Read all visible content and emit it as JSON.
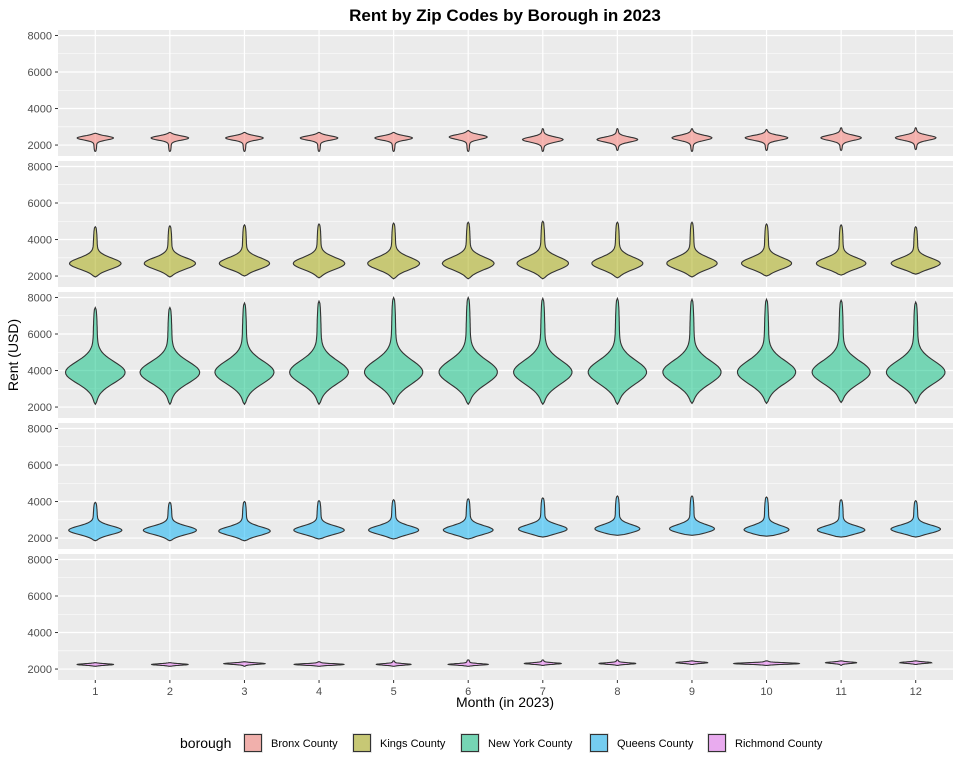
{
  "chart_data": {
    "type": "violin",
    "title": "Rent by Zip Codes by Borough in 2023",
    "xlabel": "Month (in 2023)",
    "ylabel": "Rent (USD)",
    "categories": [
      "1",
      "2",
      "3",
      "4",
      "5",
      "6",
      "7",
      "8",
      "9",
      "10",
      "11",
      "12"
    ],
    "y_ticks": [
      "2000",
      "4000",
      "6000",
      "8000"
    ],
    "ylim": [
      1400,
      8300
    ],
    "grid": true,
    "facets": "rows by borough, shared y axis",
    "legend": {
      "title": "borough",
      "position": "bottom",
      "entries": [
        "Bronx County",
        "Kings County",
        "New York County",
        "Queens County",
        "Richmond County"
      ]
    },
    "series": [
      {
        "name": "Bronx County",
        "color": "#F8766D",
        "months": [
          {
            "min": 1650,
            "max": 2650,
            "mode": 2400,
            "widest": 0.58
          },
          {
            "min": 1650,
            "max": 2700,
            "mode": 2400,
            "widest": 0.58
          },
          {
            "min": 1650,
            "max": 2700,
            "mode": 2400,
            "widest": 0.58
          },
          {
            "min": 1650,
            "max": 2700,
            "mode": 2400,
            "widest": 0.58
          },
          {
            "min": 1650,
            "max": 2700,
            "mode": 2400,
            "widest": 0.58
          },
          {
            "min": 1650,
            "max": 2800,
            "mode": 2450,
            "widest": 0.58
          },
          {
            "min": 1650,
            "max": 2900,
            "mode": 2300,
            "widest": 0.58
          },
          {
            "min": 1700,
            "max": 2900,
            "mode": 2300,
            "widest": 0.58
          },
          {
            "min": 1650,
            "max": 2900,
            "mode": 2400,
            "widest": 0.58
          },
          {
            "min": 1700,
            "max": 2850,
            "mode": 2400,
            "widest": 0.62
          },
          {
            "min": 1700,
            "max": 2950,
            "mode": 2400,
            "widest": 0.58
          },
          {
            "min": 1750,
            "max": 2950,
            "mode": 2400,
            "widest": 0.58
          }
        ]
      },
      {
        "name": "Kings County",
        "color": "#A3A500",
        "months": [
          {
            "min": 1950,
            "max": 4700,
            "mode": 2650,
            "widest": 0.82
          },
          {
            "min": 1950,
            "max": 4750,
            "mode": 2650,
            "widest": 0.82
          },
          {
            "min": 2000,
            "max": 4800,
            "mode": 2650,
            "widest": 0.82
          },
          {
            "min": 1900,
            "max": 4850,
            "mode": 2650,
            "widest": 0.82
          },
          {
            "min": 1850,
            "max": 4900,
            "mode": 2650,
            "widest": 0.82
          },
          {
            "min": 1850,
            "max": 4950,
            "mode": 2650,
            "widest": 0.82
          },
          {
            "min": 1850,
            "max": 5000,
            "mode": 2650,
            "widest": 0.82
          },
          {
            "min": 1900,
            "max": 4950,
            "mode": 2650,
            "widest": 0.82
          },
          {
            "min": 1950,
            "max": 4950,
            "mode": 2650,
            "widest": 0.82
          },
          {
            "min": 2000,
            "max": 4850,
            "mode": 2650,
            "widest": 0.82
          },
          {
            "min": 2050,
            "max": 4800,
            "mode": 2650,
            "widest": 0.82
          },
          {
            "min": 2100,
            "max": 4700,
            "mode": 2650,
            "widest": 0.82
          }
        ]
      },
      {
        "name": "New York County",
        "color": "#00BF7D",
        "months": [
          {
            "min": 2150,
            "max": 7450,
            "mode": 3850,
            "widest": 0.9
          },
          {
            "min": 2150,
            "max": 7450,
            "mode": 3850,
            "widest": 0.9
          },
          {
            "min": 2150,
            "max": 7700,
            "mode": 3850,
            "widest": 0.9
          },
          {
            "min": 2150,
            "max": 7800,
            "mode": 3850,
            "widest": 0.9
          },
          {
            "min": 2150,
            "max": 8000,
            "mode": 3850,
            "widest": 0.9
          },
          {
            "min": 2150,
            "max": 8000,
            "mode": 3850,
            "widest": 0.9
          },
          {
            "min": 2150,
            "max": 7950,
            "mode": 3850,
            "widest": 0.9
          },
          {
            "min": 2150,
            "max": 7950,
            "mode": 3850,
            "widest": 0.9
          },
          {
            "min": 2200,
            "max": 7900,
            "mode": 3850,
            "widest": 0.9
          },
          {
            "min": 2200,
            "max": 7900,
            "mode": 3850,
            "widest": 0.9
          },
          {
            "min": 2250,
            "max": 7850,
            "mode": 3850,
            "widest": 0.9
          },
          {
            "min": 2200,
            "max": 7750,
            "mode": 3850,
            "widest": 0.9
          }
        ]
      },
      {
        "name": "Queens County",
        "color": "#00B0F6",
        "months": [
          {
            "min": 1850,
            "max": 3950,
            "mode": 2400,
            "widest": 0.84
          },
          {
            "min": 1850,
            "max": 3950,
            "mode": 2400,
            "widest": 0.84
          },
          {
            "min": 1850,
            "max": 4000,
            "mode": 2350,
            "widest": 0.84
          },
          {
            "min": 1950,
            "max": 4050,
            "mode": 2400,
            "widest": 0.84
          },
          {
            "min": 1950,
            "max": 4100,
            "mode": 2400,
            "widest": 0.84
          },
          {
            "min": 1950,
            "max": 4150,
            "mode": 2400,
            "widest": 0.84
          },
          {
            "min": 2050,
            "max": 4200,
            "mode": 2450,
            "widest": 0.84
          },
          {
            "min": 2150,
            "max": 4300,
            "mode": 2450,
            "widest": 0.84
          },
          {
            "min": 2150,
            "max": 4300,
            "mode": 2450,
            "widest": 0.84
          },
          {
            "min": 2100,
            "max": 4250,
            "mode": 2400,
            "widest": 0.84
          },
          {
            "min": 2050,
            "max": 4100,
            "mode": 2400,
            "widest": 0.84
          },
          {
            "min": 2050,
            "max": 4050,
            "mode": 2450,
            "widest": 0.84
          }
        ]
      },
      {
        "name": "Richmond County",
        "color": "#E76BF3",
        "months": [
          {
            "min": 2150,
            "max": 2350,
            "mode": 2250,
            "widest": 0.52
          },
          {
            "min": 2150,
            "max": 2350,
            "mode": 2250,
            "widest": 0.52
          },
          {
            "min": 2150,
            "max": 2400,
            "mode": 2300,
            "widest": 0.6
          },
          {
            "min": 2150,
            "max": 2400,
            "mode": 2250,
            "widest": 0.72
          },
          {
            "min": 2150,
            "max": 2450,
            "mode": 2250,
            "widest": 0.52
          },
          {
            "min": 2150,
            "max": 2500,
            "mode": 2250,
            "widest": 0.62
          },
          {
            "min": 2200,
            "max": 2500,
            "mode": 2300,
            "widest": 0.55
          },
          {
            "min": 2200,
            "max": 2500,
            "mode": 2300,
            "widest": 0.55
          },
          {
            "min": 2250,
            "max": 2450,
            "mode": 2350,
            "widest": 0.45
          },
          {
            "min": 2200,
            "max": 2450,
            "mode": 2300,
            "widest": 0.95
          },
          {
            "min": 2200,
            "max": 2450,
            "mode": 2350,
            "widest": 0.45
          },
          {
            "min": 2250,
            "max": 2450,
            "mode": 2350,
            "widest": 0.45
          }
        ]
      }
    ]
  }
}
